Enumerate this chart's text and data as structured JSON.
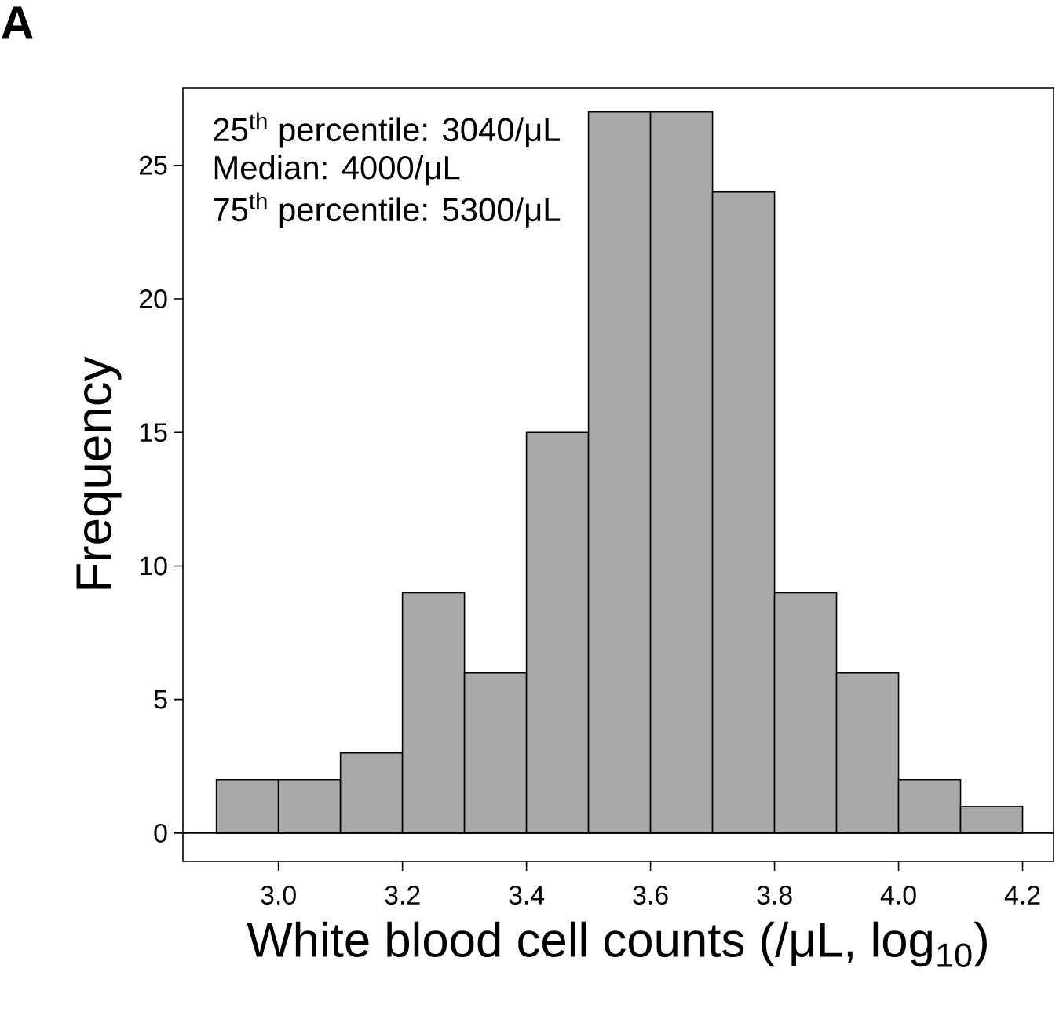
{
  "chart_data": {
    "type": "histogram",
    "xlabel": "White blood cell counts (/μL, log$_{10}$)",
    "ylabel": "Frequency",
    "annotations": [
      "A",
      "25$^{th}$ percentile: 3040/μL",
      "Median: 4000/μL",
      "75$^{th}$ percentile: 5300/μL"
    ],
    "bins": [
      2.9,
      3.0,
      3.1,
      3.2,
      3.3,
      3.4,
      3.5,
      3.6,
      3.7,
      3.8,
      3.9,
      4.0,
      4.1,
      4.2
    ],
    "values": [
      2,
      2,
      3,
      9,
      6,
      15,
      27,
      27,
      24,
      9,
      6,
      2,
      1
    ],
    "color": "#a9a9a9",
    "xlim": [
      2.846,
      4.25
    ],
    "ylim": [
      -1.06,
      27.9
    ],
    "xticks": [
      {
        "value": 3.0,
        "label": "3.0"
      },
      3.2,
      3.4,
      3.6,
      3.8,
      {
        "value": 4.0,
        "label": "4.0"
      },
      4.2
    ],
    "yticks": [
      0,
      5,
      10,
      15,
      20,
      25
    ],
    "ref_lines": [
      {
        "axis": "y",
        "value": 0,
        "color": "#000000"
      }
    ],
    "grid": false
  }
}
